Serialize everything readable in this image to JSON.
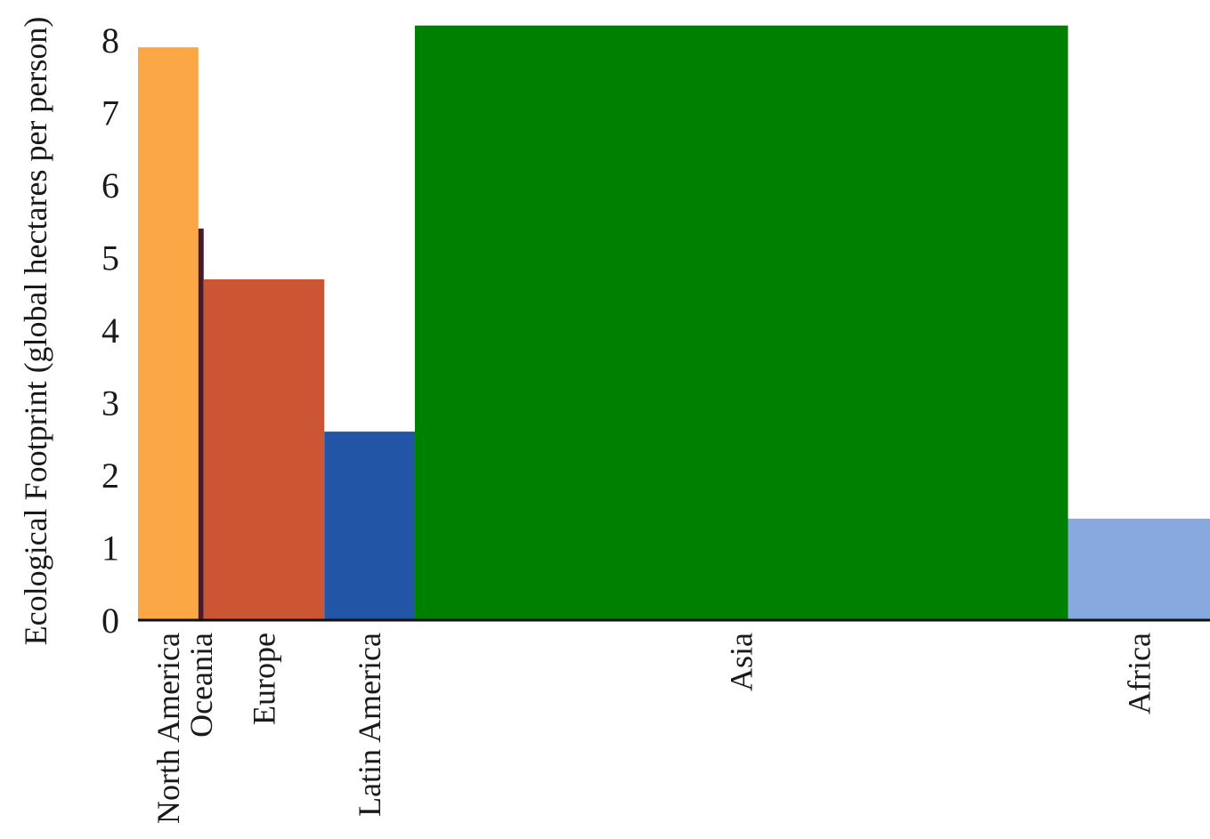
{
  "chart_data": {
    "type": "bar",
    "variant": "variable-width bar (width = population, height = footprint per person)",
    "ylabel": "Ecological Footprint (global hectares per person)",
    "xlabel": "",
    "title": "",
    "ylim": [
      0,
      8.2
    ],
    "yticks": [
      "0",
      "1",
      "2",
      "3",
      "4",
      "5",
      "6",
      "7",
      "8"
    ],
    "grid": false,
    "legend": "none",
    "categories": [
      "North America",
      "Oceania",
      "Europe",
      "Latin America",
      "Asia",
      "Africa"
    ],
    "values": [
      7.9,
      5.4,
      4.7,
      2.6,
      8.2,
      1.4
    ],
    "relative_widths": [
      68,
      6,
      136,
      102,
      736,
      160
    ],
    "colors": [
      "#FBA745",
      "#4A1A28",
      "#CC5633",
      "#2355A7",
      "#008000",
      "#87A9DE"
    ]
  }
}
